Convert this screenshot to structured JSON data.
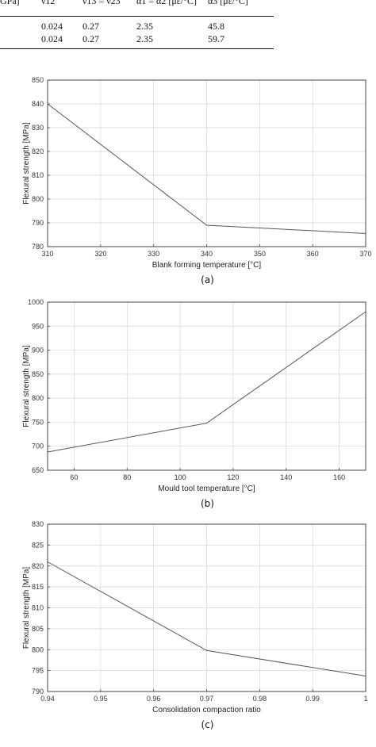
{
  "table_fragment": {
    "headers": [
      "GPa]",
      "ν12",
      "ν13 = ν23",
      "α1 = α2 [με/°C]",
      "α3 [με/°C]"
    ],
    "rows": [
      [
        "",
        "0.024",
        "0.27",
        "2.35",
        "45.8"
      ],
      [
        "",
        "0.024",
        "0.27",
        "2.35",
        "59.7"
      ]
    ]
  },
  "chart_data": [
    {
      "type": "line",
      "title": "",
      "xlabel": "Blank forming temperature [°C]",
      "ylabel": "Flexural strength [MPa]",
      "caption": "(a)",
      "xlim": [
        310,
        370
      ],
      "ylim": [
        780,
        850
      ],
      "xticks": [
        310,
        320,
        330,
        340,
        350,
        360,
        370
      ],
      "yticks": [
        780,
        790,
        800,
        810,
        820,
        830,
        840,
        850
      ],
      "grid": true,
      "series": [
        {
          "x": [
            310,
            340,
            370
          ],
          "y": [
            840,
            789,
            785.5
          ]
        }
      ]
    },
    {
      "type": "line",
      "title": "",
      "xlabel": "Mould tool temperature [°C]",
      "ylabel": "Flexural strength [MPa]",
      "caption": "(b)",
      "xlim": [
        50,
        170
      ],
      "ylim": [
        650,
        1000
      ],
      "xticks": [
        60,
        80,
        100,
        120,
        140,
        160
      ],
      "yticks": [
        650,
        700,
        750,
        800,
        850,
        900,
        950,
        1000
      ],
      "grid": true,
      "series": [
        {
          "x": [
            50,
            110,
            170
          ],
          "y": [
            688,
            748,
            980
          ]
        }
      ]
    },
    {
      "type": "line",
      "title": "",
      "xlabel": "Consolidation compaction ratio",
      "ylabel": "Flexural strength [MPa]",
      "caption": "(c)",
      "xlim": [
        0.94,
        1
      ],
      "ylim": [
        790,
        830
      ],
      "xticks": [
        0.94,
        0.95,
        0.96,
        0.97,
        0.98,
        0.99,
        1
      ],
      "yticks": [
        790,
        795,
        800,
        805,
        810,
        815,
        820,
        825,
        830
      ],
      "grid": true,
      "series": [
        {
          "x": [
            0.94,
            0.97,
            1
          ],
          "y": [
            821,
            799.8,
            793.7
          ]
        }
      ]
    }
  ]
}
